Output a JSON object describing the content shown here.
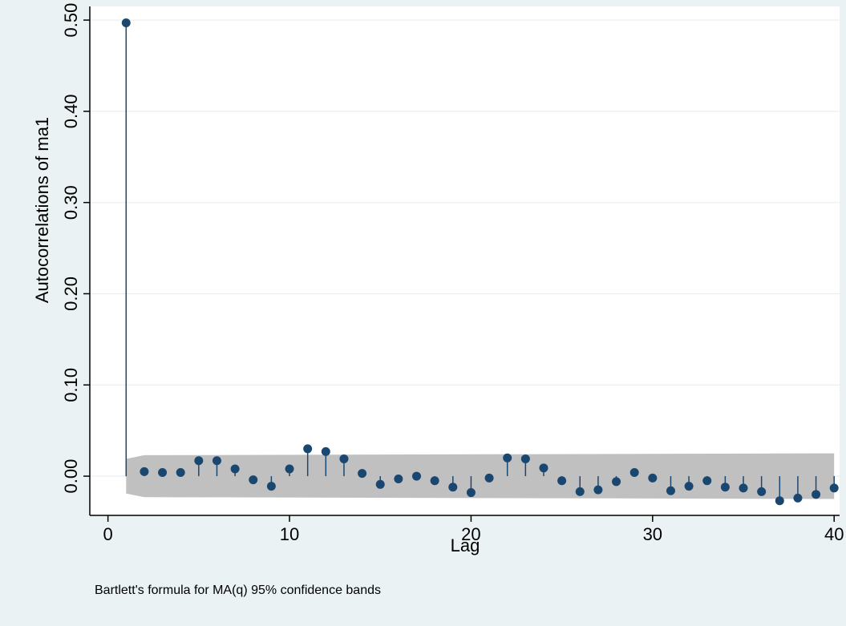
{
  "chart_data": {
    "type": "scatter",
    "style": "stem (dropline) plot with shaded confidence band",
    "xlabel": "Lag",
    "ylabel": "Autocorrelations of ma1",
    "note": "Bartlett's formula for MA(q) 95% confidence bands",
    "xlim": [
      -1,
      40.3
    ],
    "ylim": [
      -0.043,
      0.515
    ],
    "xticks": [
      0,
      10,
      20,
      30,
      40
    ],
    "yticks": [
      0.0,
      0.1,
      0.2,
      0.3,
      0.4,
      0.5
    ],
    "xtick_labels": [
      "0",
      "10",
      "20",
      "30",
      "40"
    ],
    "ytick_labels": [
      "0.00",
      "0.10",
      "0.20",
      "0.30",
      "0.40",
      "0.50"
    ],
    "grid": "horizontal",
    "legend": "none",
    "colors": {
      "marker": "#1a476f",
      "band": "#c0c0c0",
      "plot_background": "#ffffff",
      "outer_background": "#eaf2f3",
      "grid": "#e8eef0"
    },
    "series": [
      {
        "x": [
          1,
          2,
          3,
          4,
          5,
          6,
          7,
          8,
          9,
          10,
          11,
          12,
          13,
          14,
          15,
          16,
          17,
          18,
          19,
          20,
          21,
          22,
          23,
          24,
          25,
          26,
          27,
          28,
          29,
          30,
          31,
          32,
          33,
          34,
          35,
          36,
          37,
          38,
          39,
          40
        ],
        "values": [
          0.497,
          0.005,
          0.004,
          0.004,
          0.017,
          0.017,
          0.008,
          -0.004,
          -0.011,
          0.008,
          0.03,
          0.027,
          0.019,
          0.003,
          -0.009,
          -0.003,
          0.0,
          -0.005,
          -0.012,
          -0.018,
          -0.002,
          0.02,
          0.019,
          0.009,
          -0.005,
          -0.017,
          -0.015,
          -0.006,
          0.004,
          -0.002,
          -0.016,
          -0.011,
          -0.005,
          -0.012,
          -0.013,
          -0.017,
          -0.027,
          -0.024,
          -0.02,
          -0.013
        ]
      }
    ],
    "band": {
      "lags": [
        1,
        2,
        40
      ],
      "upper": [
        0.019,
        0.023,
        0.025
      ],
      "lower": [
        -0.019,
        -0.023,
        -0.025
      ]
    }
  }
}
